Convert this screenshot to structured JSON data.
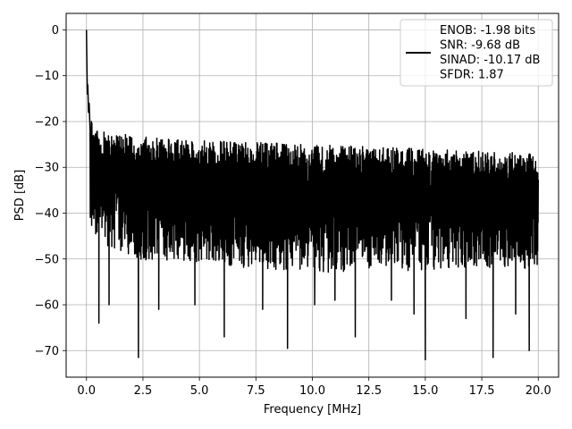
{
  "chart_data": {
    "type": "line",
    "title": "",
    "xlabel": "Frequency [MHz]",
    "ylabel": "PSD [dB]",
    "xlim": [
      -0.9,
      20.9
    ],
    "ylim": [
      -75.8,
      3.6
    ],
    "xticks": [
      0.0,
      2.5,
      5.0,
      7.5,
      10.0,
      12.5,
      15.0,
      17.5,
      20.0
    ],
    "xtick_labels": [
      "0.0",
      "2.5",
      "5.0",
      "7.5",
      "10.0",
      "12.5",
      "15.0",
      "17.5",
      "20.0"
    ],
    "yticks": [
      0,
      -10,
      -20,
      -30,
      -40,
      -50,
      -60,
      -70
    ],
    "ytick_labels": [
      "0",
      "−10",
      "−20",
      "−30",
      "−40",
      "−50",
      "−60",
      "−70"
    ],
    "grid": true,
    "legend_position": "top-right",
    "series": [
      {
        "color": "#000000",
        "x_range": [
          0.0,
          20.0
        ],
        "peak": {
          "x": 0.0,
          "y": 0.0
        },
        "noise_upper_envelope": [
          [
            0.1,
            -12
          ],
          [
            0.3,
            -22
          ],
          [
            2.0,
            -23
          ],
          [
            4.0,
            -24
          ],
          [
            10.0,
            -25
          ],
          [
            20.0,
            -27
          ]
        ],
        "noise_lower_envelope": [
          [
            0.1,
            -45
          ],
          [
            2.0,
            -50
          ],
          [
            10.0,
            -53
          ],
          [
            20.0,
            -52
          ]
        ],
        "deep_nulls": [
          [
            0.55,
            -64
          ],
          [
            1.0,
            -60
          ],
          [
            2.3,
            -71.5
          ],
          [
            3.2,
            -61
          ],
          [
            4.8,
            -60
          ],
          [
            6.1,
            -67
          ],
          [
            7.8,
            -61
          ],
          [
            8.9,
            -69.5
          ],
          [
            10.1,
            -60
          ],
          [
            11.0,
            -59
          ],
          [
            11.9,
            -67
          ],
          [
            13.5,
            -59
          ],
          [
            14.5,
            -62
          ],
          [
            15.0,
            -72
          ],
          [
            16.8,
            -63
          ],
          [
            18.0,
            -71.5
          ],
          [
            19.0,
            -62
          ],
          [
            19.6,
            -70
          ]
        ]
      }
    ],
    "legend": {
      "lines": [
        "ENOB: -1.98 bits",
        "SNR: -9.68 dB",
        "SINAD: -10.17 dB",
        "SFDR: 1.87"
      ]
    }
  }
}
